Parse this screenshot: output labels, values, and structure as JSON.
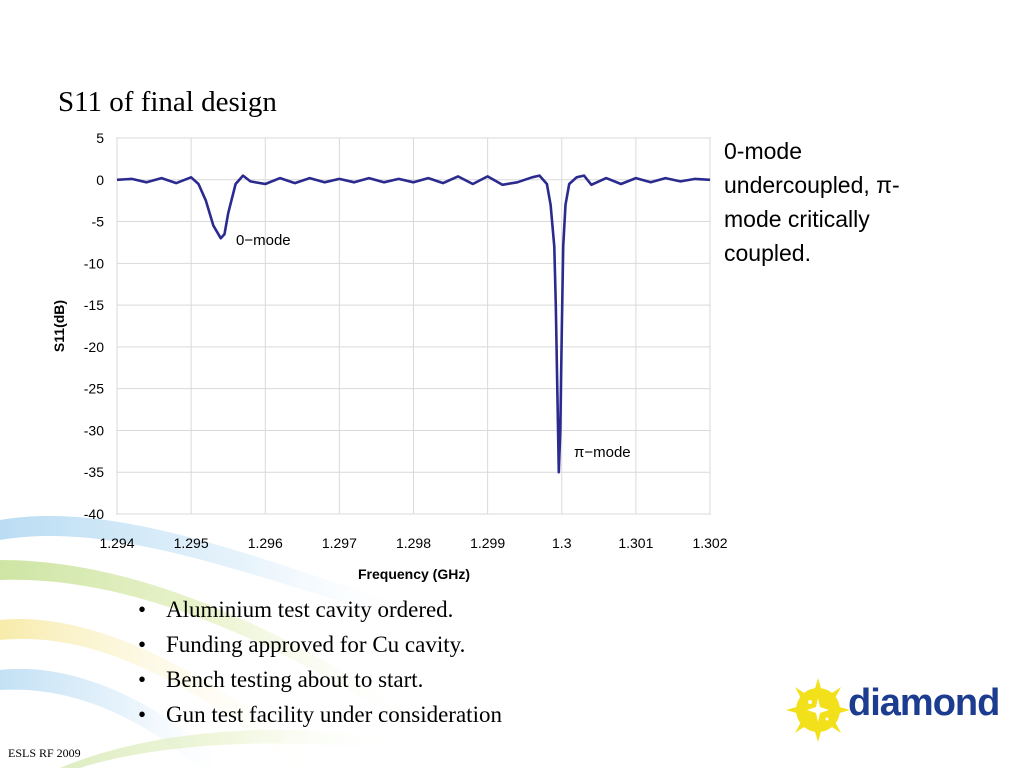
{
  "slide": {
    "title": "S11 of final design",
    "side_note": {
      "line1": "0-mode",
      "line2": "undercoupled, π-",
      "line3": "mode critically",
      "line4": "coupled."
    },
    "bullets": [
      "Aluminium test cavity ordered.",
      "Funding approved for Cu cavity.",
      "Bench testing about to start.",
      "Gun test facility under consideration"
    ],
    "footer": "ESLS RF 2009",
    "logo_text": "diamond"
  },
  "colors": {
    "series_line": "#2b2b8f",
    "grid": "#d9d9d9",
    "logo_yellow": "#f2e01a",
    "logo_blue": "#1b3c8f"
  },
  "chart_data": {
    "type": "line",
    "title": "",
    "xlabel": "Frequency (GHz)",
    "ylabel": "S11(dB)",
    "xlim": [
      1.294,
      1.302
    ],
    "ylim": [
      -40,
      5
    ],
    "x_ticks": [
      "1.294",
      "1.295",
      "1.296",
      "1.297",
      "1.298",
      "1.299",
      "1.3",
      "1.301",
      "1.302"
    ],
    "y_ticks": [
      "5",
      "0",
      "-5",
      "-10",
      "-15",
      "-20",
      "-25",
      "-30",
      "-35",
      "-40"
    ],
    "grid": true,
    "legend": "none",
    "series": [
      {
        "x": [
          1.294,
          1.2942,
          1.2944,
          1.2946,
          1.2948,
          1.295,
          1.2951,
          1.2952,
          1.2953,
          1.2954,
          1.29545,
          1.2955,
          1.2956,
          1.2957,
          1.2958,
          1.296,
          1.2962,
          1.2964,
          1.2966,
          1.2968,
          1.297,
          1.2972,
          1.2974,
          1.2976,
          1.2978,
          1.298,
          1.2982,
          1.2984,
          1.2986,
          1.2988,
          1.299,
          1.2992,
          1.2994,
          1.2996,
          1.2997,
          1.2998,
          1.29985,
          1.2999,
          1.29992,
          1.29994,
          1.29996,
          1.29998,
          1.3,
          1.30002,
          1.30005,
          1.3001,
          1.3002,
          1.3003,
          1.3004,
          1.3006,
          1.3008,
          1.301,
          1.3012,
          1.3014,
          1.3016,
          1.3018,
          1.302
        ],
        "y": [
          0.0,
          0.1,
          -0.3,
          0.2,
          -0.4,
          0.3,
          -0.5,
          -2.5,
          -5.5,
          -7.0,
          -6.5,
          -4.0,
          -0.5,
          0.5,
          -0.2,
          -0.5,
          0.2,
          -0.4,
          0.2,
          -0.3,
          0.1,
          -0.3,
          0.2,
          -0.3,
          0.1,
          -0.3,
          0.2,
          -0.4,
          0.4,
          -0.5,
          0.4,
          -0.6,
          -0.3,
          0.3,
          0.5,
          -0.5,
          -3.0,
          -8.0,
          -15.0,
          -25.0,
          -35.0,
          -30.0,
          -18.0,
          -8.0,
          -3.0,
          -0.5,
          0.3,
          0.5,
          -0.6,
          0.2,
          -0.5,
          0.2,
          -0.3,
          0.2,
          -0.2,
          0.1,
          0.0
        ]
      }
    ],
    "annotations": [
      {
        "text": "0−mode"
      },
      {
        "text": "π−mode"
      }
    ]
  }
}
